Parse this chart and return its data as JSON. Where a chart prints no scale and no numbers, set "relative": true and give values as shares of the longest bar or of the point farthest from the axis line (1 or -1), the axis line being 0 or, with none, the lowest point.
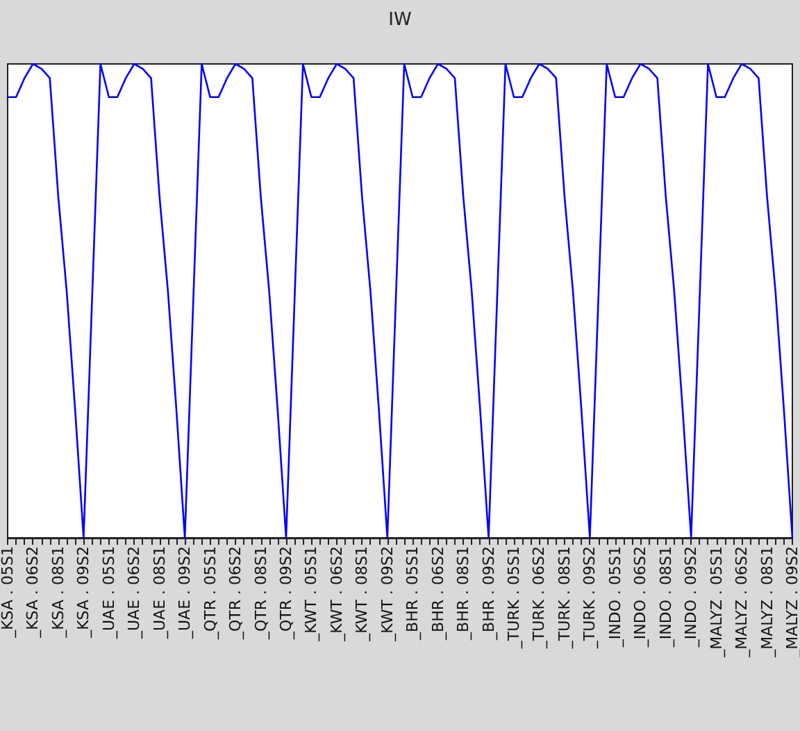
{
  "chart_data": {
    "type": "line",
    "title": "IW",
    "relative": true,
    "marker": "none",
    "line_style": "solid",
    "categories": [
      "_KSA . 05S1",
      null,
      null,
      "_KSA . 06S2",
      null,
      null,
      "_KSA . 08S1",
      null,
      null,
      "_KSA . 09S2",
      null,
      null,
      "_UAE . 05S1",
      null,
      null,
      "_UAE . 06S2",
      null,
      null,
      "_UAE . 08S1",
      null,
      null,
      "_UAE . 09S2",
      null,
      null,
      "_QTR . 05S1",
      null,
      null,
      "_QTR . 06S2",
      null,
      null,
      "_QTR . 08S1",
      null,
      null,
      "_QTR . 09S2",
      null,
      null,
      "_KWT . 05S1",
      null,
      null,
      "_KWT . 06S2",
      null,
      null,
      "_KWT . 08S1",
      null,
      null,
      "_KWT . 09S2",
      null,
      null,
      "_BHR . 05S1",
      null,
      null,
      "_BHR . 06S2",
      null,
      null,
      "_BHR . 08S1",
      null,
      null,
      "_BHR . 09S2",
      null,
      null,
      "_TURK . 05S1",
      null,
      null,
      "_TURK . 06S2",
      null,
      null,
      "_TURK . 08S1",
      null,
      null,
      "_TURK . 09S2",
      null,
      null,
      "_INDO . 05S1",
      null,
      null,
      "_INDO . 06S2",
      null,
      null,
      "_INDO . 08S1",
      null,
      null,
      "_INDO . 09S2",
      null,
      null,
      "_MALYZ . 05S1",
      null,
      null,
      "_MALYZ . 06S2",
      null,
      null,
      "_MALYZ . 08S1",
      null,
      null,
      "_MALYZ . 09S2"
    ],
    "series": [
      {
        "color": "#0000ff",
        "values": [
          0.93,
          0.93,
          0.97,
          1.0,
          0.99,
          0.97,
          0.72,
          0.52,
          0.27,
          0,
          0.5,
          1.0,
          0.93,
          0.93,
          0.97,
          1.0,
          0.99,
          0.97,
          0.72,
          0.52,
          0.27,
          0,
          0.5,
          1.0,
          0.93,
          0.93,
          0.97,
          1.0,
          0.99,
          0.97,
          0.72,
          0.52,
          0.27,
          0,
          0.5,
          1.0,
          0.93,
          0.93,
          0.97,
          1.0,
          0.99,
          0.97,
          0.72,
          0.52,
          0.27,
          0,
          0.5,
          1.0,
          0.93,
          0.93,
          0.97,
          1.0,
          0.99,
          0.97,
          0.72,
          0.52,
          0.27,
          0,
          0.5,
          1.0,
          0.93,
          0.93,
          0.97,
          1.0,
          0.99,
          0.97,
          0.72,
          0.52,
          0.27,
          0,
          0.5,
          1.0,
          0.93,
          0.93,
          0.97,
          1.0,
          0.99,
          0.97,
          0.72,
          0.52,
          0.27,
          0,
          0.5,
          1.0,
          0.93,
          0.93,
          0.97,
          1.0,
          0.99,
          0.97,
          0.72,
          0.52,
          0.27,
          0
        ]
      }
    ]
  }
}
